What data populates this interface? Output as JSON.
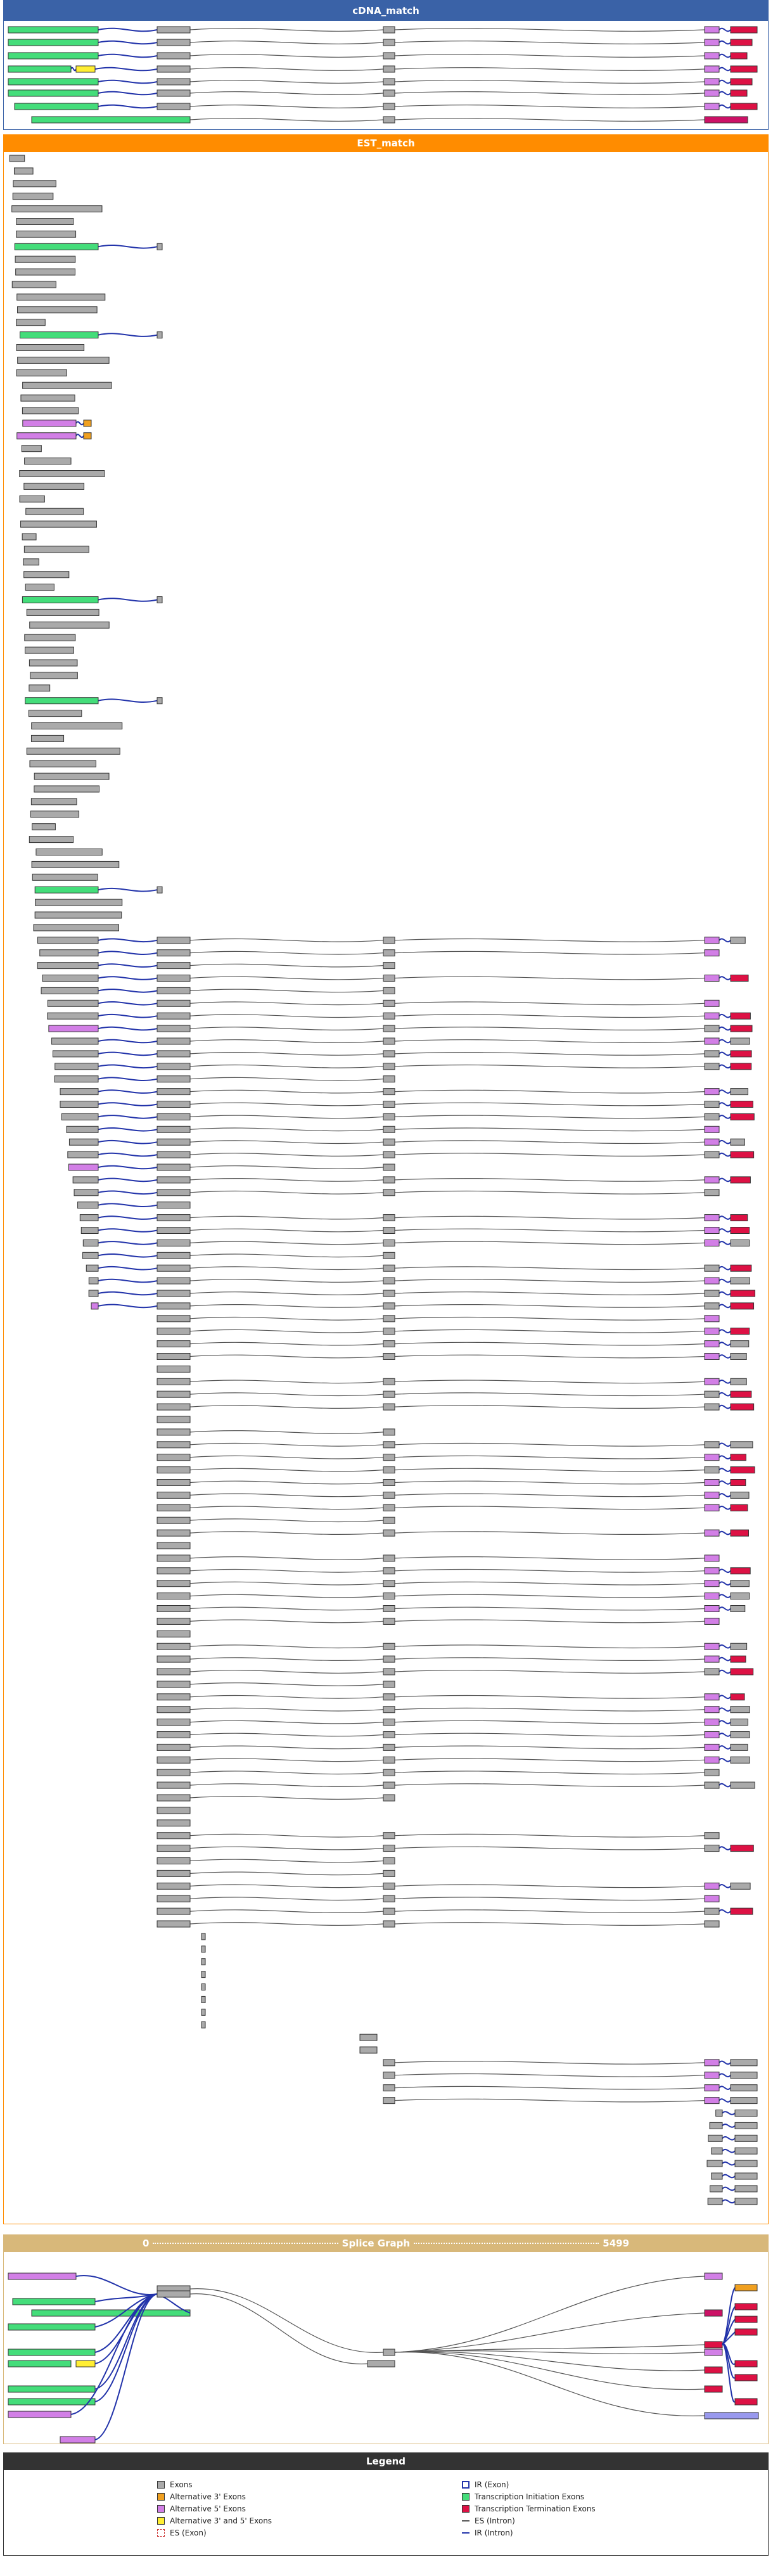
{
  "panels": {
    "cdna": {
      "title": "cDNA_match"
    },
    "est": {
      "title": "EST_match"
    },
    "splice_graph": {
      "start": "0",
      "title": "Splice Graph",
      "end": "5499"
    }
  },
  "legend": {
    "title": "Legend",
    "items": [
      "Exons",
      "Alternative 3' Exons",
      "Alternative 5' Exons",
      "Alternative 3' and 5' Exons",
      "ES (Exon)",
      "IR (Exon)",
      "Transcription Initiation Exons",
      "Transcription Termination Exons",
      "ES (Intron)",
      "IR (Intron)"
    ]
  }
}
